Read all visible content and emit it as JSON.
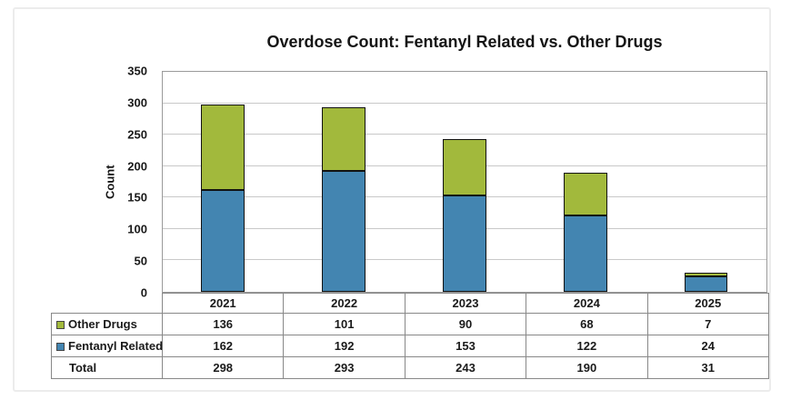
{
  "chart_data": {
    "type": "bar",
    "variant": "stacked",
    "title": "Overdose Count: Fentanyl Related vs. Other Drugs",
    "ylabel": "Count",
    "xlabel": "",
    "categories": [
      "2021",
      "2022",
      "2023",
      "2024",
      "2025"
    ],
    "series": [
      {
        "name": "Fentanyl Related",
        "color": "#4385B1",
        "values": [
          162,
          192,
          153,
          122,
          24
        ]
      },
      {
        "name": "Other Drugs",
        "color": "#A2B93C",
        "values": [
          136,
          101,
          90,
          68,
          7
        ]
      }
    ],
    "totals": {
      "label": "Total",
      "values": [
        298,
        293,
        243,
        190,
        31
      ]
    },
    "ylim": [
      0,
      350
    ],
    "yticks": [
      0,
      50,
      100,
      150,
      200,
      250,
      300,
      350
    ],
    "grid": true,
    "gridline_color": "#c9c9c9",
    "legend_position": "data-table-left"
  }
}
